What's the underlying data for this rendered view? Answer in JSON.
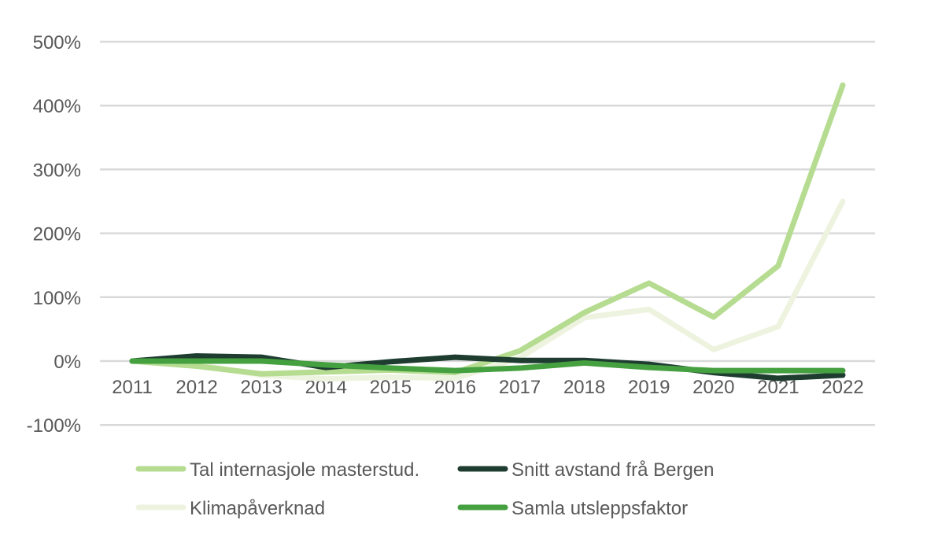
{
  "chart_data": {
    "type": "line",
    "title": "",
    "xlabel": "",
    "ylabel": "",
    "x": [
      "2011",
      "2012",
      "2013",
      "2014",
      "2015",
      "2016",
      "2017",
      "2018",
      "2019",
      "2020",
      "2021",
      "2022"
    ],
    "ylim": [
      -100,
      500
    ],
    "yticks": [
      -100,
      0,
      100,
      200,
      300,
      400,
      500
    ],
    "ytick_labels": [
      "-100%",
      "0%",
      "100%",
      "200%",
      "300%",
      "400%",
      "500%"
    ],
    "grid": true,
    "legend_position": "bottom",
    "series": [
      {
        "name": "Tal internasjole masterstud.",
        "color": "#b5dc90",
        "values": [
          0,
          -8,
          -20,
          -17,
          -14,
          -18,
          16,
          76,
          122,
          69,
          149,
          432
        ]
      },
      {
        "name": "Snitt avstand frå Bergen",
        "color": "#1e3d30",
        "values": [
          0,
          8,
          6,
          -10,
          -1,
          6,
          1,
          1,
          -5,
          -18,
          -27,
          -22
        ]
      },
      {
        "name": "Klimapåverknad",
        "color": "#eef3e0",
        "values": [
          0,
          -5,
          -22,
          -28,
          -25,
          -27,
          5,
          68,
          81,
          18,
          54,
          250
        ]
      },
      {
        "name": "Samla utsleppsfaktor",
        "color": "#45a040",
        "values": [
          0,
          0,
          0,
          -6,
          -11,
          -15,
          -11,
          -3,
          -10,
          -15,
          -15,
          -15
        ]
      }
    ]
  }
}
